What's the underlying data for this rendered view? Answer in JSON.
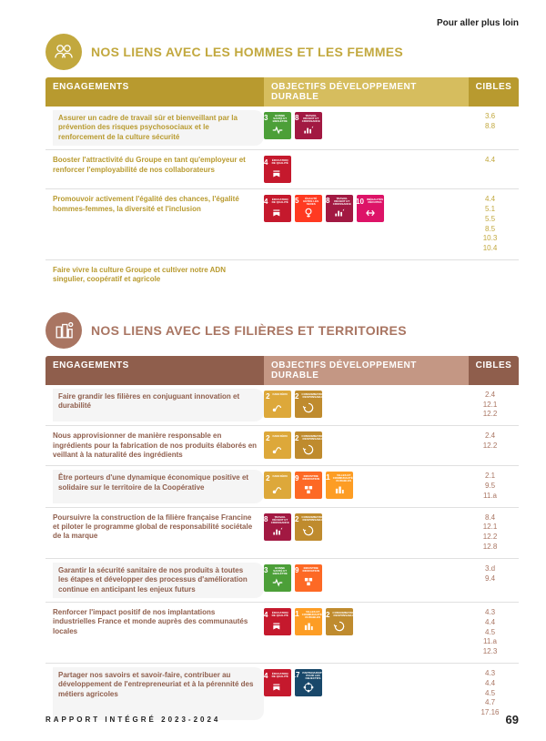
{
  "top_right": "Pour aller plus loin",
  "footer_left": "RAPPORT INTÉGRÉ 2023-2024",
  "page_number": "69",
  "headers": {
    "eng": "ENGAGEMENTS",
    "obj": "OBJECTIFS DÉVELOPPEMENT DURABLE",
    "cib": "CIBLES"
  },
  "sdg_palette": {
    "2": {
      "c": "#dda83a",
      "label": "FAIM ZÉRO"
    },
    "3": {
      "c": "#4c9f38",
      "label": "BONNE SANTÉ ET BIEN-ÊTRE"
    },
    "4": {
      "c": "#c5192d",
      "label": "ÉDUCATION DE QUALITÉ"
    },
    "5": {
      "c": "#ff3a21",
      "label": "ÉGALITÉ ENTRE LES SEXES"
    },
    "8": {
      "c": "#a21942",
      "label": "TRAVAIL DÉCENT ET CROISSANCE"
    },
    "9": {
      "c": "#fd6925",
      "label": "INDUSTRIE INNOVATION"
    },
    "10": {
      "c": "#dd1367",
      "label": "INÉGALITÉS RÉDUITES"
    },
    "11": {
      "c": "#fd9d24",
      "label": "VILLES ET COMMUNAUTÉS DURABLES"
    },
    "12": {
      "c": "#bf8b2e",
      "label": "CONSOMMATION RESPONSABLE"
    },
    "17": {
      "c": "#19486a",
      "label": "PARTENARIATS POUR LES OBJECTIFS"
    }
  },
  "sections": [
    {
      "id": "people",
      "title": "NOS LIENS AVEC LES HOMMES ET LES FEMMES",
      "accent": "#c2a83e",
      "accent_dark": "#b89a2f",
      "head_light": "#d6bd5e",
      "title_color": "#c2a83e",
      "cible_color": "#c2a83e",
      "icon": "people",
      "rows": [
        {
          "eng": "Assurer un cadre de travail sûr et bienveillant par la prévention des risques psychosociaux et le renforcement de la culture sécurité",
          "sdgs": [
            "3",
            "8"
          ],
          "cibles": [
            "3.6",
            "8.8"
          ],
          "hl": true
        },
        {
          "eng": "Booster l'attractivité du Groupe en tant qu'employeur et renforcer l'employabilité de nos collaborateurs",
          "sdgs": [
            "4"
          ],
          "cibles": [
            "4.4"
          ]
        },
        {
          "eng": "Promouvoir activement l'égalité des chances, l'égalité hommes-femmes, la diversité et l'inclusion",
          "sdgs": [
            "4",
            "5",
            "8",
            "10"
          ],
          "cibles": [
            "4.4",
            "5.1",
            "5.5",
            "8.5",
            "10.3",
            "10.4"
          ]
        },
        {
          "eng": "Faire vivre la culture Groupe et cultiver notre ADN singulier, coopératif et agricole",
          "sdgs": [],
          "cibles": []
        }
      ]
    },
    {
      "id": "territories",
      "title": "NOS LIENS AVEC LES FILIÈRES ET TERRITOIRES",
      "accent": "#a97562",
      "accent_dark": "#8f5e4c",
      "head_light": "#c49784",
      "title_color": "#a97562",
      "cible_color": "#a97562",
      "icon": "buildings",
      "rows": [
        {
          "eng": "Faire grandir les filières en conjuguant innovation et durabilité",
          "sdgs": [
            "2",
            "12"
          ],
          "cibles": [
            "2.4",
            "12.1",
            "12.2"
          ],
          "hl": true
        },
        {
          "eng": "Nous approvisionner de manière responsable en ingrédients pour la fabrication de nos produits élaborés en veillant à la naturalité des ingrédients",
          "sdgs": [
            "2",
            "12"
          ],
          "cibles": [
            "2.4",
            "12.2"
          ]
        },
        {
          "eng": "Être porteurs d'une dynamique économique positive et solidaire sur le territoire de la Coopérative",
          "sdgs": [
            "2",
            "9",
            "11"
          ],
          "cibles": [
            "2.1",
            "9.5",
            "11.a"
          ],
          "hl": true
        },
        {
          "eng": "Poursuivre la construction de la filière française Francine et piloter le programme global de responsabilité sociétale de la marque",
          "sdgs": [
            "8",
            "12"
          ],
          "cibles": [
            "8.4",
            "12.1",
            "12.2",
            "12.8"
          ]
        },
        {
          "eng": "Garantir la sécurité sanitaire de nos produits à toutes les étapes et développer des processus d'amélioration continue en anticipant les enjeux futurs",
          "sdgs": [
            "3",
            "9"
          ],
          "cibles": [
            "3.d",
            "9.4"
          ],
          "hl": true
        },
        {
          "eng": "Renforcer l'impact positif de nos implantations industrielles France et monde auprès des communautés locales",
          "sdgs": [
            "4",
            "11",
            "12"
          ],
          "cibles": [
            "4.3",
            "4.4",
            "4.5",
            "11.a",
            "12.3"
          ]
        },
        {
          "eng": "Partager nos savoirs et savoir-faire, contribuer au développement de l'entrepreneuriat et à la pérennité des métiers agricoles",
          "sdgs": [
            "4",
            "17"
          ],
          "cibles": [
            "4.3",
            "4.4",
            "4.5",
            "4.7",
            "17.16"
          ],
          "hl": true
        }
      ]
    }
  ]
}
